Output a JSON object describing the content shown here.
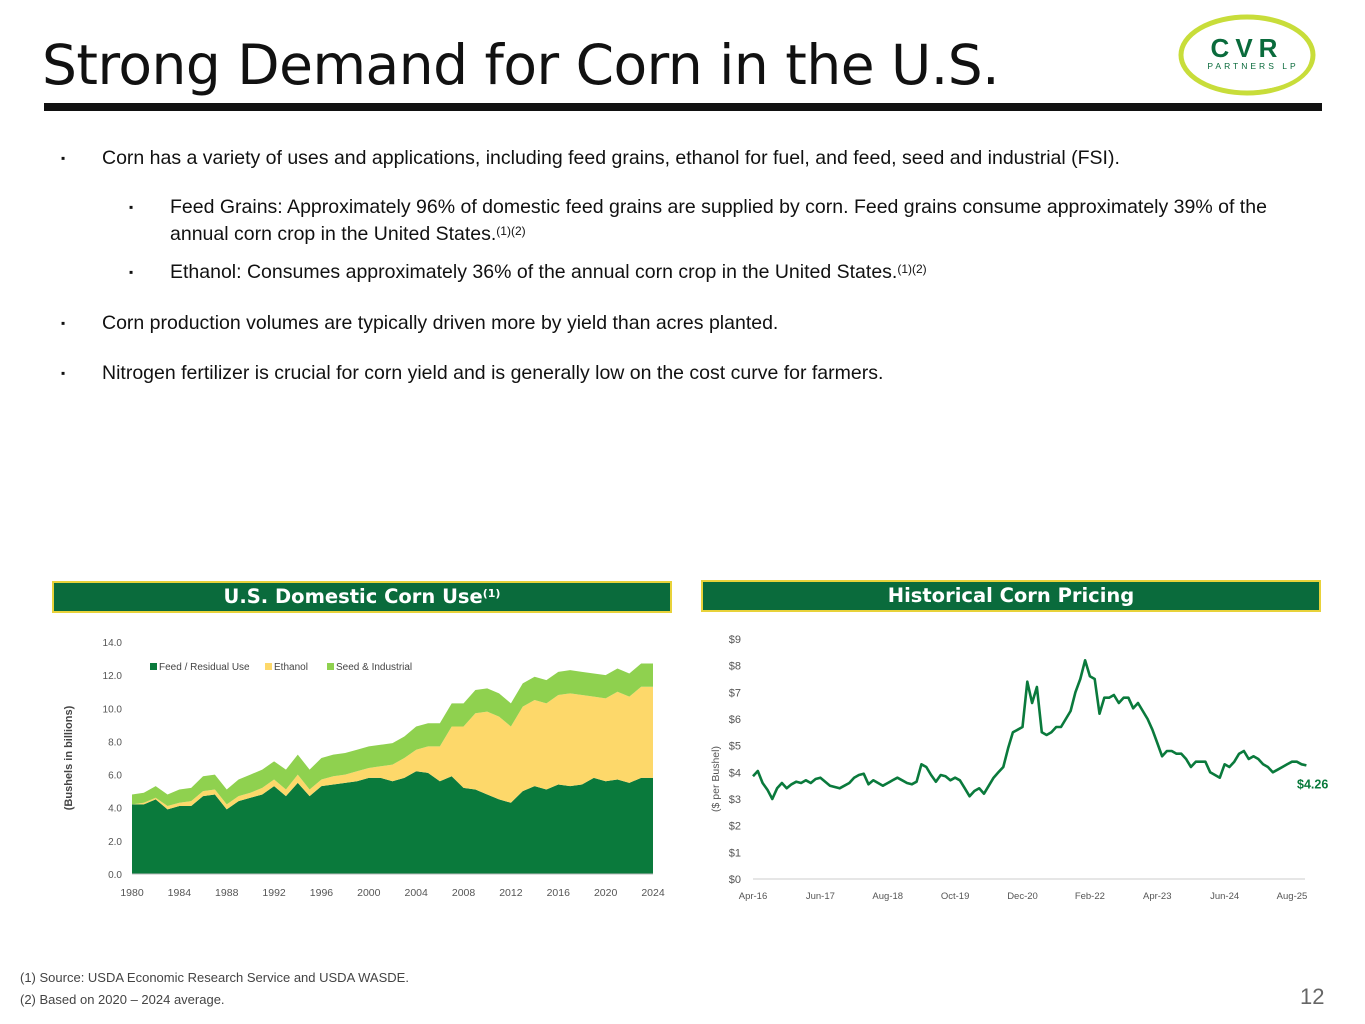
{
  "slide": {
    "title": "Strong Demand for Corn in the U.S.",
    "page_number": "12",
    "logo": {
      "name": "CVR",
      "sub": "PARTNERS LP"
    }
  },
  "bullets": [
    {
      "text": "Corn has a variety of uses and applications, including feed grains, ethanol for fuel, and feed, seed and industrial (FSI).",
      "sup": ""
    },
    {
      "text": "Feed Grains: Approximately 96% of domestic feed grains are supplied by corn. Feed grains consume approximately 39% of the annual corn crop in the United States.",
      "sup": "(1)(2)"
    },
    {
      "text": "Ethanol: Consumes approximately 36% of the annual corn crop in the United States.",
      "sup": "(1)(2)"
    },
    {
      "text": "Corn production volumes are typically driven more by yield than acres planted.",
      "sup": ""
    },
    {
      "text": "Nitrogen fertilizer is crucial for corn yield and is generally low on the cost curve for farmers.",
      "sup": ""
    }
  ],
  "bullet_marker": "▪",
  "footnotes": [
    "(1) Source:  USDA Economic Research Service and USDA WASDE.",
    "(2) Based on 2020 – 2024 average."
  ],
  "colors": {
    "dark_green": "#0a7a3c",
    "yellow": "#fdd86a",
    "light_green": "#8fd14f",
    "header_bg": "#0a6b3c",
    "header_border": "#e8d23a"
  },
  "chart_data": [
    {
      "type": "area",
      "title": "U.S. Domestic Corn Use",
      "title_sup": "(1)",
      "ylabel": "(Bushels in billions)",
      "xlabel": "",
      "stacked": true,
      "ylim": [
        0,
        14
      ],
      "yticks": [
        "0.0",
        "2.0",
        "4.0",
        "6.0",
        "8.0",
        "10.0",
        "12.0",
        "14.0"
      ],
      "xticks": [
        "1980",
        "1984",
        "1988",
        "1992",
        "1996",
        "2000",
        "2004",
        "2008",
        "2012",
        "2016",
        "2020",
        "2024"
      ],
      "legend_position": "top-left",
      "x": [
        1980,
        1981,
        1982,
        1983,
        1984,
        1985,
        1986,
        1987,
        1988,
        1989,
        1990,
        1991,
        1992,
        1993,
        1994,
        1995,
        1996,
        1997,
        1998,
        1999,
        2000,
        2001,
        2002,
        2003,
        2004,
        2005,
        2006,
        2007,
        2008,
        2009,
        2010,
        2011,
        2012,
        2013,
        2014,
        2015,
        2016,
        2017,
        2018,
        2019,
        2020,
        2021,
        2022,
        2023,
        2024
      ],
      "series": [
        {
          "name": "Feed / Residual Use",
          "values": [
            4.2,
            4.2,
            4.5,
            3.9,
            4.1,
            4.1,
            4.7,
            4.8,
            3.9,
            4.4,
            4.6,
            4.8,
            5.3,
            4.7,
            5.5,
            4.7,
            5.3,
            5.4,
            5.5,
            5.6,
            5.8,
            5.8,
            5.6,
            5.8,
            6.2,
            6.1,
            5.6,
            5.9,
            5.2,
            5.1,
            4.8,
            4.5,
            4.3,
            5.0,
            5.3,
            5.1,
            5.4,
            5.3,
            5.4,
            5.8,
            5.6,
            5.7,
            5.5,
            5.8,
            5.8
          ]
        },
        {
          "name": "Ethanol",
          "values": [
            0.0,
            0.1,
            0.1,
            0.2,
            0.2,
            0.3,
            0.3,
            0.3,
            0.3,
            0.3,
            0.3,
            0.4,
            0.4,
            0.4,
            0.5,
            0.4,
            0.4,
            0.5,
            0.5,
            0.6,
            0.6,
            0.7,
            1.0,
            1.2,
            1.3,
            1.6,
            2.1,
            3.0,
            3.7,
            4.6,
            5.0,
            5.0,
            4.6,
            5.1,
            5.2,
            5.2,
            5.4,
            5.6,
            5.4,
            4.9,
            5.0,
            5.3,
            5.2,
            5.5,
            5.5
          ]
        },
        {
          "name": "Seed & Industrial",
          "values": [
            0.6,
            0.6,
            0.7,
            0.7,
            0.8,
            0.8,
            0.9,
            0.9,
            0.9,
            1.0,
            1.1,
            1.1,
            1.1,
            1.2,
            1.2,
            1.2,
            1.3,
            1.3,
            1.3,
            1.3,
            1.3,
            1.3,
            1.3,
            1.3,
            1.4,
            1.4,
            1.4,
            1.4,
            1.4,
            1.4,
            1.4,
            1.4,
            1.4,
            1.4,
            1.4,
            1.4,
            1.4,
            1.4,
            1.4,
            1.4,
            1.4,
            1.4,
            1.4,
            1.4,
            1.4
          ]
        }
      ]
    },
    {
      "type": "line",
      "title": "Historical Corn Pricing",
      "ylabel": "($ per Bushel)",
      "xlabel": "",
      "ylim": [
        0,
        9
      ],
      "yticks": [
        "$0",
        "$1",
        "$2",
        "$3",
        "$4",
        "$5",
        "$6",
        "$7",
        "$8",
        "$9"
      ],
      "xticks": [
        "Apr-16",
        "Jun-17",
        "Aug-18",
        "Oct-19",
        "Dec-20",
        "Feb-22",
        "Apr-23",
        "Jun-24",
        "Aug-25"
      ],
      "last_label": "$4.26",
      "x_start": "Apr-16",
      "x_interval": "1 month",
      "series": [
        {
          "name": "Corn price",
          "values": [
            3.85,
            4.05,
            3.6,
            3.35,
            3.0,
            3.4,
            3.6,
            3.4,
            3.55,
            3.65,
            3.6,
            3.7,
            3.6,
            3.75,
            3.8,
            3.65,
            3.5,
            3.45,
            3.4,
            3.5,
            3.6,
            3.8,
            3.9,
            3.95,
            3.55,
            3.7,
            3.6,
            3.5,
            3.6,
            3.7,
            3.8,
            3.7,
            3.6,
            3.55,
            3.65,
            4.3,
            4.2,
            3.9,
            3.65,
            3.9,
            3.85,
            3.7,
            3.8,
            3.7,
            3.4,
            3.1,
            3.3,
            3.4,
            3.2,
            3.5,
            3.8,
            4.0,
            4.2,
            4.9,
            5.5,
            5.6,
            5.7,
            7.4,
            6.6,
            7.2,
            5.5,
            5.4,
            5.5,
            5.7,
            5.7,
            6.0,
            6.3,
            7.0,
            7.5,
            8.2,
            7.6,
            7.5,
            6.2,
            6.8,
            6.8,
            6.9,
            6.6,
            6.8,
            6.8,
            6.4,
            6.6,
            6.3,
            6.0,
            5.6,
            5.1,
            4.6,
            4.8,
            4.8,
            4.7,
            4.7,
            4.5,
            4.2,
            4.4,
            4.4,
            4.4,
            4.0,
            3.9,
            3.8,
            4.3,
            4.2,
            4.4,
            4.7,
            4.8,
            4.5,
            4.6,
            4.5,
            4.3,
            4.2,
            4.0,
            4.1,
            4.2,
            4.3,
            4.4,
            4.4,
            4.3,
            4.26
          ]
        }
      ]
    }
  ]
}
